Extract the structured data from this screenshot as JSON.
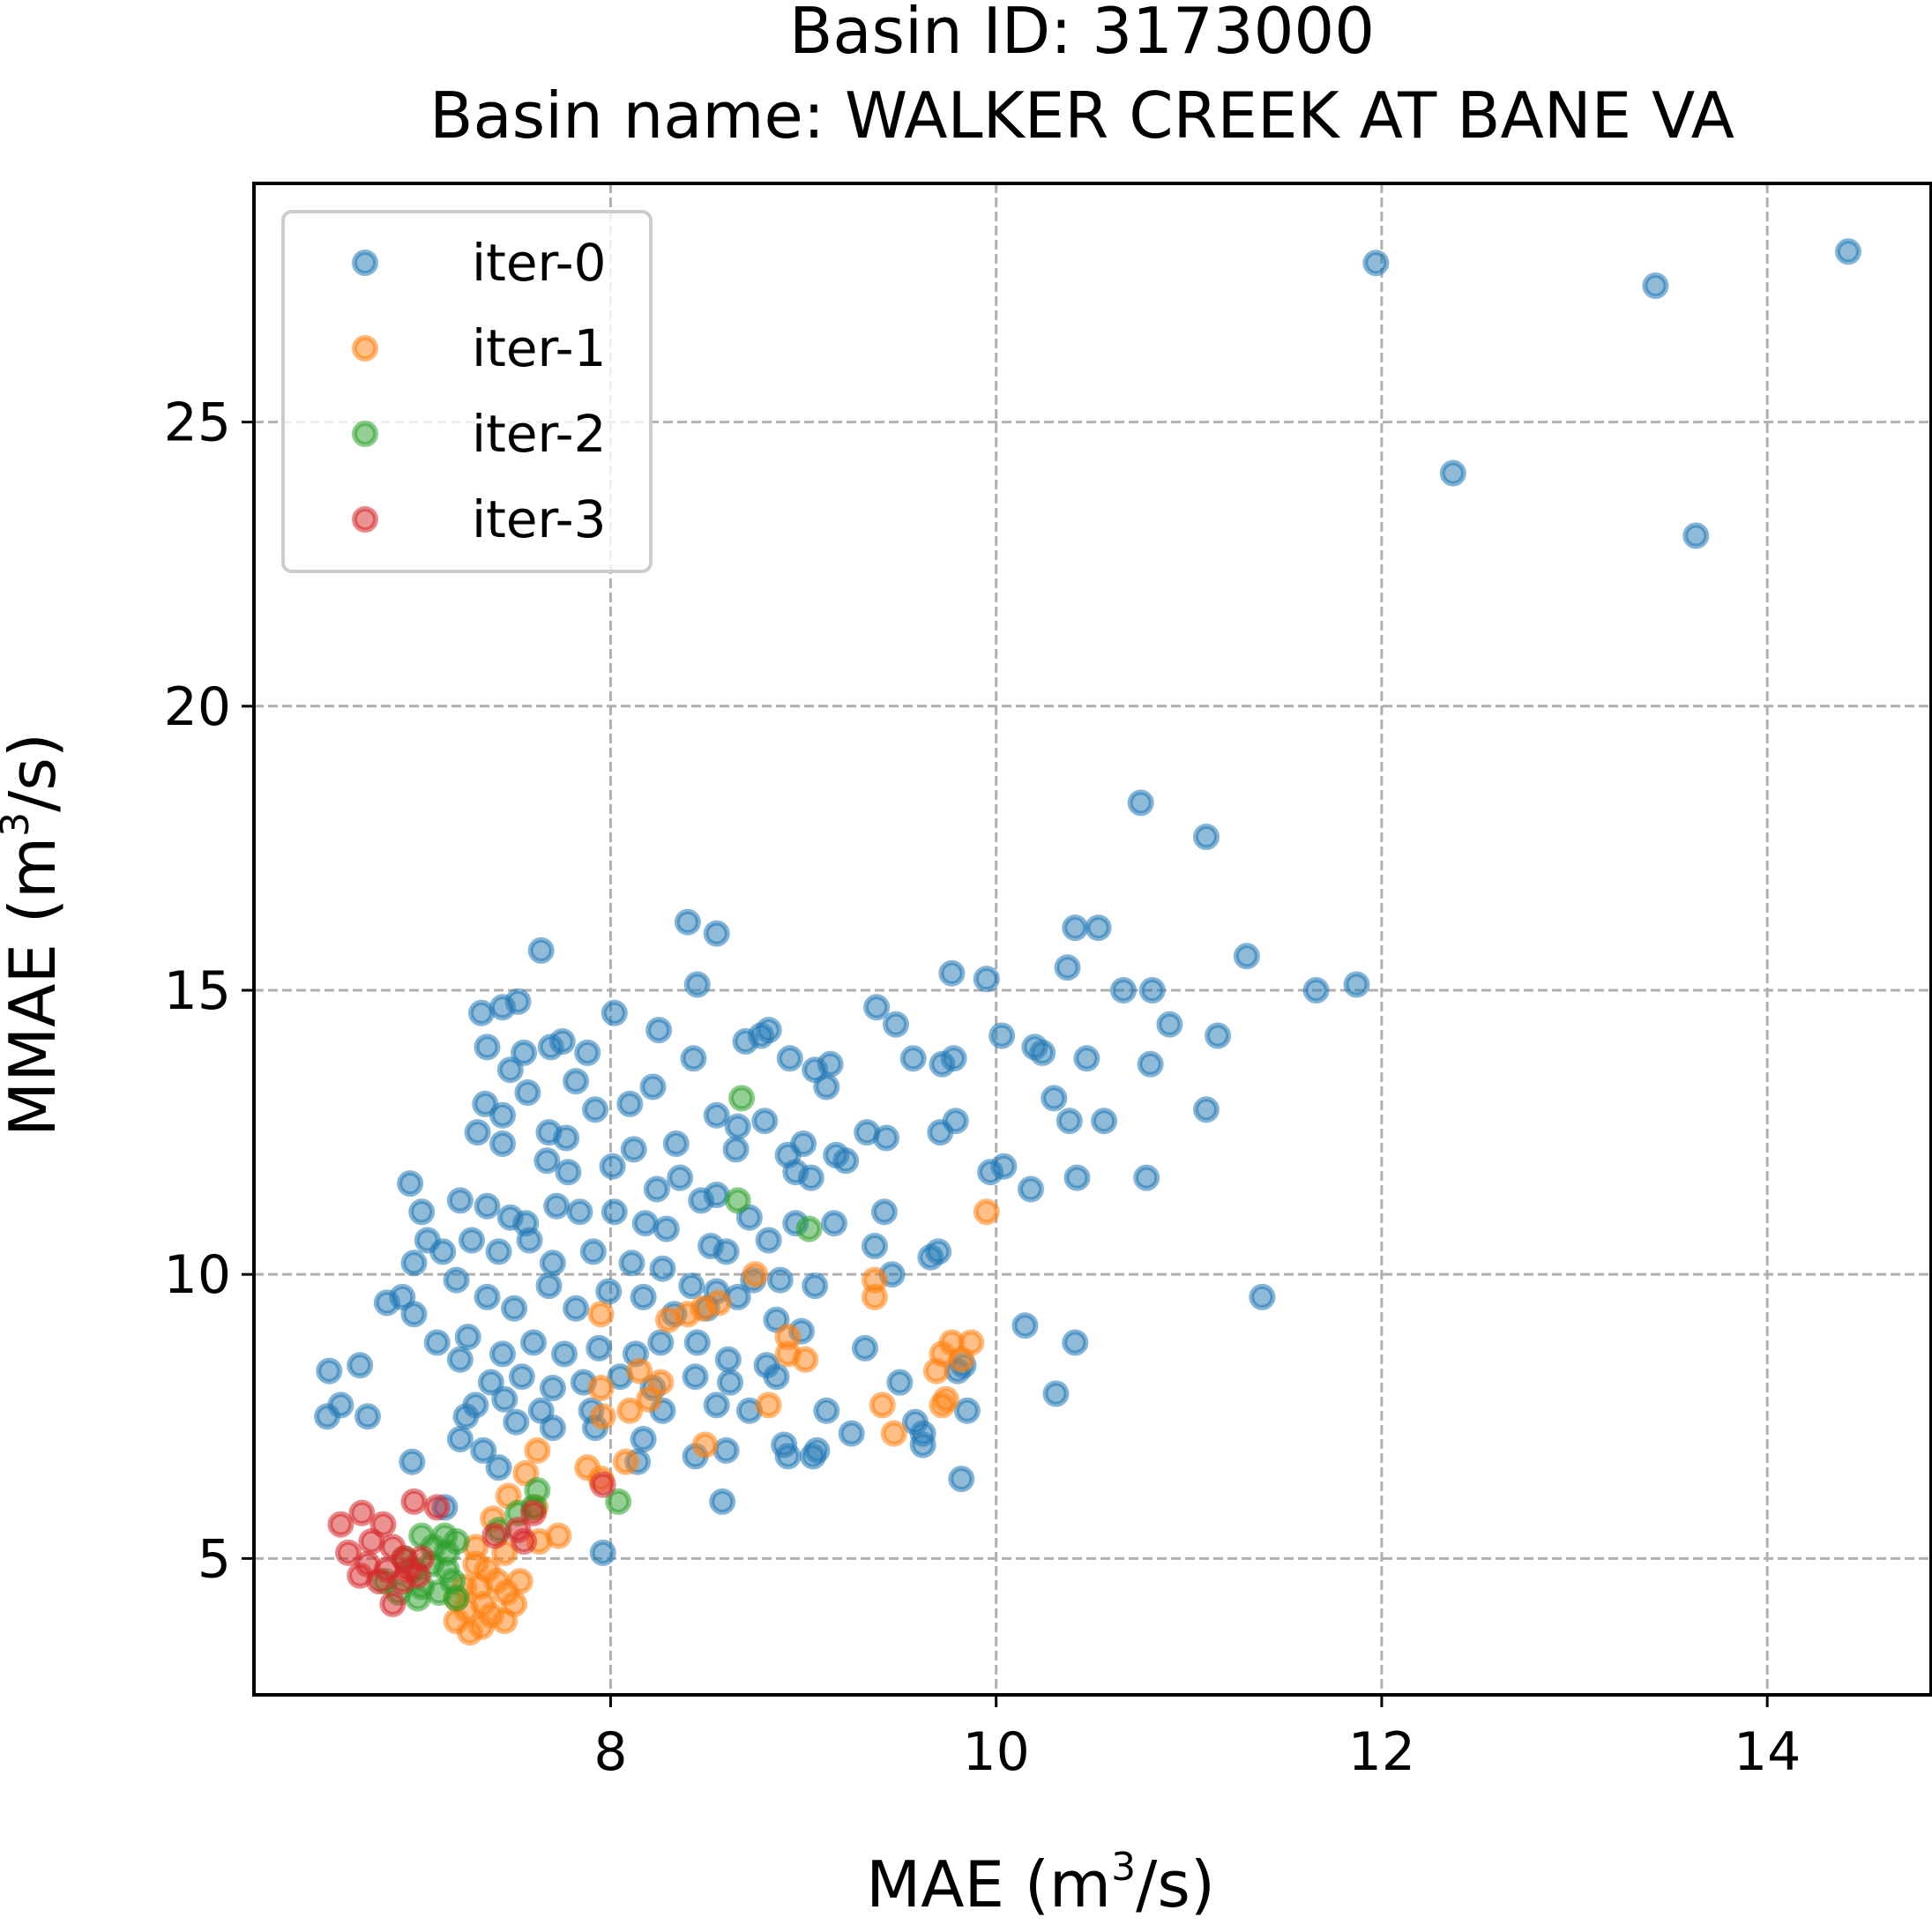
{
  "chart_data": {
    "type": "scatter",
    "title_lines": [
      "Basin ID: 3173000",
      "Basin name: WALKER CREEK AT BANE VA"
    ],
    "xlabel": {
      "base": "MAE (m",
      "sup": "3",
      "tail": "/s)"
    },
    "ylabel": {
      "base": "MMAE (m",
      "sup": "3",
      "tail": "/s)"
    },
    "xlim": [
      6.15,
      14.85
    ],
    "ylim": [
      2.6,
      29.2
    ],
    "xticks": [
      8,
      10,
      12,
      14
    ],
    "yticks": [
      5,
      10,
      15,
      20,
      25
    ],
    "grid": true,
    "legend_position": "upper-left",
    "series": [
      {
        "name": "iter-0",
        "color": "#1f77b4",
        "points": [
          [
            14.42,
            28.0
          ],
          [
            11.97,
            27.8
          ],
          [
            13.42,
            27.4
          ],
          [
            12.37,
            24.1
          ],
          [
            13.63,
            23.0
          ],
          [
            10.75,
            18.3
          ],
          [
            11.09,
            17.7
          ],
          [
            8.4,
            16.2
          ],
          [
            8.55,
            16.0
          ],
          [
            10.41,
            16.1
          ],
          [
            10.53,
            16.1
          ],
          [
            7.64,
            15.7
          ],
          [
            11.3,
            15.6
          ],
          [
            9.77,
            15.3
          ],
          [
            9.95,
            15.2
          ],
          [
            10.37,
            15.4
          ],
          [
            11.87,
            15.1
          ],
          [
            11.66,
            15.0
          ],
          [
            10.66,
            15.0
          ],
          [
            10.81,
            15.0
          ],
          [
            8.45,
            15.1
          ],
          [
            7.52,
            14.8
          ],
          [
            7.44,
            14.7
          ],
          [
            7.33,
            14.6
          ],
          [
            8.02,
            14.6
          ],
          [
            9.38,
            14.7
          ],
          [
            9.48,
            14.4
          ],
          [
            10.9,
            14.4
          ],
          [
            11.15,
            14.2
          ],
          [
            10.03,
            14.2
          ],
          [
            10.2,
            14.0
          ],
          [
            10.24,
            13.9
          ],
          [
            8.78,
            14.2
          ],
          [
            8.7,
            14.1
          ],
          [
            8.25,
            14.3
          ],
          [
            7.69,
            14.0
          ],
          [
            7.75,
            14.1
          ],
          [
            7.36,
            14.0
          ],
          [
            7.55,
            13.9
          ],
          [
            7.88,
            13.9
          ],
          [
            8.82,
            14.3
          ],
          [
            8.43,
            13.8
          ],
          [
            8.93,
            13.8
          ],
          [
            9.14,
            13.7
          ],
          [
            9.57,
            13.8
          ],
          [
            9.78,
            13.8
          ],
          [
            9.72,
            13.7
          ],
          [
            10.8,
            13.7
          ],
          [
            10.47,
            13.8
          ],
          [
            7.48,
            13.6
          ],
          [
            7.82,
            13.4
          ],
          [
            7.57,
            13.2
          ],
          [
            9.06,
            13.6
          ],
          [
            9.12,
            13.3
          ],
          [
            10.3,
            13.1
          ],
          [
            11.09,
            12.9
          ],
          [
            8.22,
            13.3
          ],
          [
            7.35,
            13.0
          ],
          [
            7.44,
            12.8
          ],
          [
            7.92,
            12.9
          ],
          [
            8.1,
            13.0
          ],
          [
            8.55,
            12.8
          ],
          [
            8.66,
            12.6
          ],
          [
            8.8,
            12.7
          ],
          [
            7.68,
            12.5
          ],
          [
            7.77,
            12.4
          ],
          [
            9.33,
            12.5
          ],
          [
            9.71,
            12.5
          ],
          [
            9.43,
            12.4
          ],
          [
            10.38,
            12.7
          ],
          [
            10.56,
            12.7
          ],
          [
            9.79,
            12.7
          ],
          [
            7.44,
            12.3
          ],
          [
            8.12,
            12.2
          ],
          [
            8.34,
            12.3
          ],
          [
            8.65,
            12.2
          ],
          [
            8.92,
            12.1
          ],
          [
            9.0,
            12.3
          ],
          [
            9.17,
            12.1
          ],
          [
            9.22,
            12.0
          ],
          [
            7.31,
            12.5
          ],
          [
            7.67,
            12.0
          ],
          [
            7.78,
            11.8
          ],
          [
            8.01,
            11.9
          ],
          [
            8.24,
            11.5
          ],
          [
            8.36,
            11.7
          ],
          [
            8.47,
            11.3
          ],
          [
            8.55,
            11.4
          ],
          [
            8.72,
            11.0
          ],
          [
            8.96,
            11.8
          ],
          [
            9.04,
            11.7
          ],
          [
            9.97,
            11.8
          ],
          [
            10.04,
            11.9
          ],
          [
            10.42,
            11.7
          ],
          [
            10.78,
            11.7
          ],
          [
            10.18,
            11.5
          ],
          [
            6.96,
            11.6
          ],
          [
            7.02,
            11.1
          ],
          [
            7.22,
            11.3
          ],
          [
            7.36,
            11.2
          ],
          [
            7.48,
            11.0
          ],
          [
            7.56,
            10.9
          ],
          [
            7.72,
            11.2
          ],
          [
            7.84,
            11.1
          ],
          [
            8.02,
            11.1
          ],
          [
            8.18,
            10.9
          ],
          [
            8.29,
            10.8
          ],
          [
            8.52,
            10.5
          ],
          [
            8.6,
            10.4
          ],
          [
            8.82,
            10.6
          ],
          [
            8.96,
            10.9
          ],
          [
            9.16,
            10.9
          ],
          [
            9.37,
            10.5
          ],
          [
            9.46,
            10.0
          ],
          [
            9.66,
            10.3
          ],
          [
            9.42,
            11.1
          ],
          [
            9.7,
            10.4
          ],
          [
            7.05,
            10.6
          ],
          [
            7.13,
            10.4
          ],
          [
            7.28,
            10.6
          ],
          [
            7.42,
            10.4
          ],
          [
            7.58,
            10.6
          ],
          [
            7.7,
            10.2
          ],
          [
            7.91,
            10.4
          ],
          [
            8.11,
            10.2
          ],
          [
            8.27,
            10.1
          ],
          [
            8.42,
            9.8
          ],
          [
            8.55,
            9.7
          ],
          [
            8.74,
            9.9
          ],
          [
            8.88,
            9.9
          ],
          [
            9.06,
            9.8
          ],
          [
            6.98,
            10.2
          ],
          [
            6.92,
            9.6
          ],
          [
            6.98,
            9.3
          ],
          [
            7.2,
            9.9
          ],
          [
            7.36,
            9.6
          ],
          [
            7.5,
            9.4
          ],
          [
            7.68,
            9.8
          ],
          [
            7.82,
            9.4
          ],
          [
            7.99,
            9.7
          ],
          [
            8.17,
            9.6
          ],
          [
            8.33,
            9.3
          ],
          [
            8.5,
            9.4
          ],
          [
            8.66,
            9.6
          ],
          [
            8.86,
            9.2
          ],
          [
            8.99,
            9.0
          ],
          [
            11.38,
            9.6
          ],
          [
            10.15,
            9.1
          ],
          [
            10.41,
            8.8
          ],
          [
            6.84,
            9.5
          ],
          [
            7.1,
            8.8
          ],
          [
            7.26,
            8.9
          ],
          [
            7.44,
            8.6
          ],
          [
            7.6,
            8.8
          ],
          [
            7.76,
            8.6
          ],
          [
            7.94,
            8.7
          ],
          [
            8.13,
            8.6
          ],
          [
            8.26,
            8.8
          ],
          [
            8.45,
            8.8
          ],
          [
            8.61,
            8.5
          ],
          [
            8.81,
            8.4
          ],
          [
            9.32,
            8.7
          ],
          [
            9.83,
            8.4
          ],
          [
            6.54,
            8.3
          ],
          [
            6.7,
            8.4
          ],
          [
            7.22,
            8.5
          ],
          [
            7.38,
            8.1
          ],
          [
            7.54,
            8.2
          ],
          [
            7.7,
            8.0
          ],
          [
            7.86,
            8.1
          ],
          [
            8.05,
            8.2
          ],
          [
            8.22,
            8.0
          ],
          [
            8.44,
            8.2
          ],
          [
            8.62,
            8.1
          ],
          [
            8.86,
            8.2
          ],
          [
            9.5,
            8.1
          ],
          [
            9.8,
            8.3
          ],
          [
            10.31,
            7.9
          ],
          [
            7.3,
            7.7
          ],
          [
            7.45,
            7.8
          ],
          [
            7.64,
            7.6
          ],
          [
            7.9,
            7.6
          ],
          [
            8.27,
            7.6
          ],
          [
            8.55,
            7.7
          ],
          [
            8.72,
            7.6
          ],
          [
            9.12,
            7.6
          ],
          [
            9.85,
            7.6
          ],
          [
            6.6,
            7.7
          ],
          [
            6.53,
            7.5
          ],
          [
            6.74,
            7.5
          ],
          [
            7.25,
            7.5
          ],
          [
            7.51,
            7.4
          ],
          [
            7.7,
            7.3
          ],
          [
            7.92,
            7.3
          ],
          [
            8.17,
            7.1
          ],
          [
            7.22,
            7.1
          ],
          [
            7.34,
            6.9
          ],
          [
            8.9,
            7.0
          ],
          [
            9.07,
            6.9
          ],
          [
            9.25,
            7.2
          ],
          [
            9.58,
            7.4
          ],
          [
            9.62,
            7.2
          ],
          [
            9.62,
            7.0
          ],
          [
            8.44,
            6.8
          ],
          [
            8.6,
            6.9
          ],
          [
            8.92,
            6.8
          ],
          [
            9.05,
            6.8
          ],
          [
            6.97,
            6.7
          ],
          [
            7.42,
            6.6
          ],
          [
            8.14,
            6.7
          ],
          [
            9.82,
            6.4
          ],
          [
            8.58,
            6.0
          ],
          [
            7.14,
            5.9
          ],
          [
            7.96,
            5.1
          ]
        ]
      },
      {
        "name": "iter-1",
        "color": "#ff7f0e",
        "points": [
          [
            9.95,
            11.1
          ],
          [
            8.75,
            10.0
          ],
          [
            9.37,
            9.9
          ],
          [
            9.37,
            9.6
          ],
          [
            8.48,
            9.4
          ],
          [
            8.56,
            9.5
          ],
          [
            8.4,
            9.3
          ],
          [
            8.3,
            9.2
          ],
          [
            7.95,
            9.3
          ],
          [
            8.92,
            8.9
          ],
          [
            9.77,
            8.8
          ],
          [
            9.87,
            8.8
          ],
          [
            9.72,
            8.6
          ],
          [
            9.82,
            8.5
          ],
          [
            9.69,
            8.3
          ],
          [
            9.01,
            8.5
          ],
          [
            8.92,
            8.6
          ],
          [
            8.15,
            8.3
          ],
          [
            7.95,
            8.0
          ],
          [
            8.26,
            8.1
          ],
          [
            8.1,
            7.6
          ],
          [
            8.2,
            7.8
          ],
          [
            7.96,
            7.5
          ],
          [
            9.41,
            7.7
          ],
          [
            9.47,
            7.2
          ],
          [
            9.74,
            7.8
          ],
          [
            9.72,
            7.7
          ],
          [
            8.82,
            7.7
          ],
          [
            8.49,
            7.0
          ],
          [
            8.08,
            6.7
          ],
          [
            7.62,
            6.9
          ],
          [
            7.56,
            6.5
          ],
          [
            7.88,
            6.6
          ],
          [
            7.95,
            6.4
          ],
          [
            7.47,
            6.1
          ],
          [
            7.61,
            5.9
          ],
          [
            7.73,
            5.4
          ],
          [
            7.63,
            5.3
          ],
          [
            7.39,
            5.7
          ],
          [
            7.45,
            5.1
          ],
          [
            7.3,
            5.2
          ],
          [
            7.3,
            4.9
          ],
          [
            7.36,
            4.8
          ],
          [
            7.53,
            4.6
          ],
          [
            7.41,
            4.6
          ],
          [
            7.24,
            4.5
          ],
          [
            7.32,
            4.5
          ],
          [
            7.46,
            4.4
          ],
          [
            7.2,
            4.3
          ],
          [
            7.34,
            4.2
          ],
          [
            7.5,
            4.2
          ],
          [
            7.25,
            4.1
          ],
          [
            7.38,
            4.0
          ],
          [
            7.2,
            3.9
          ],
          [
            7.33,
            3.8
          ],
          [
            7.45,
            3.9
          ],
          [
            7.27,
            3.7
          ]
        ]
      },
      {
        "name": "iter-2",
        "color": "#2ca02c",
        "points": [
          [
            8.68,
            13.1
          ],
          [
            8.66,
            11.3
          ],
          [
            9.03,
            10.8
          ],
          [
            7.62,
            6.2
          ],
          [
            8.04,
            6.0
          ],
          [
            7.6,
            5.9
          ],
          [
            7.52,
            5.8
          ],
          [
            7.42,
            5.5
          ],
          [
            7.14,
            5.4
          ],
          [
            7.02,
            5.4
          ],
          [
            7.2,
            5.3
          ],
          [
            7.08,
            5.2
          ],
          [
            7.15,
            5.1
          ],
          [
            6.93,
            5.0
          ],
          [
            7.07,
            4.9
          ],
          [
            6.98,
            4.8
          ],
          [
            7.15,
            4.8
          ],
          [
            7.18,
            4.6
          ],
          [
            6.83,
            4.6
          ],
          [
            7.02,
            4.5
          ],
          [
            7.11,
            4.4
          ],
          [
            6.9,
            4.4
          ],
          [
            7.0,
            4.3
          ],
          [
            7.2,
            4.3
          ]
        ]
      },
      {
        "name": "iter-3",
        "color": "#d62728",
        "points": [
          [
            6.6,
            5.6
          ],
          [
            6.71,
            5.8
          ],
          [
            6.82,
            5.6
          ],
          [
            6.98,
            6.0
          ],
          [
            7.1,
            5.9
          ],
          [
            6.64,
            5.1
          ],
          [
            6.76,
            5.3
          ],
          [
            6.87,
            5.2
          ],
          [
            6.93,
            5.0
          ],
          [
            7.02,
            5.0
          ],
          [
            6.74,
            4.9
          ],
          [
            6.84,
            4.8
          ],
          [
            6.95,
            4.8
          ],
          [
            6.7,
            4.7
          ],
          [
            6.8,
            4.6
          ],
          [
            6.92,
            4.6
          ],
          [
            7.0,
            4.7
          ],
          [
            6.87,
            4.2
          ],
          [
            7.96,
            6.3
          ],
          [
            7.6,
            5.8
          ],
          [
            7.52,
            5.5
          ],
          [
            7.4,
            5.4
          ],
          [
            7.55,
            5.3
          ]
        ]
      }
    ]
  }
}
